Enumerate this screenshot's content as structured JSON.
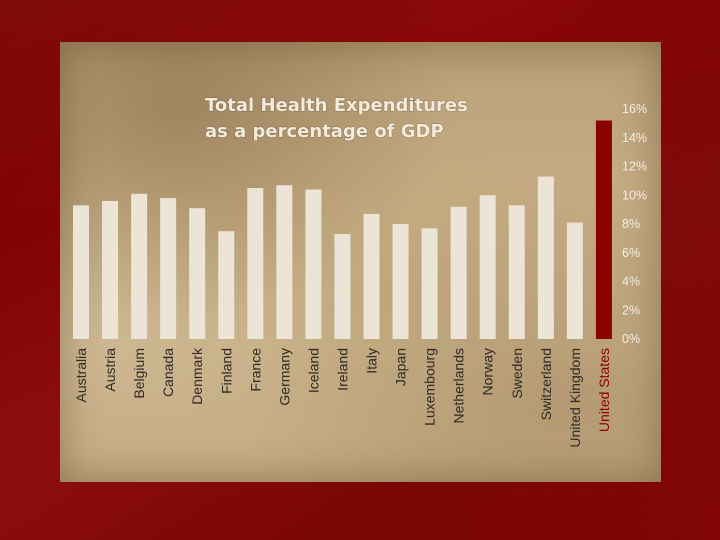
{
  "chart_data": {
    "type": "bar",
    "title_lines": [
      "Total Health Expenditures",
      "as a percentage of GDP"
    ],
    "categories": [
      "Australia",
      "Austria",
      "Belgium",
      "Canada",
      "Denmark",
      "Finland",
      "France",
      "Germany",
      "Iceland",
      "Ireland",
      "Italy",
      "Japan",
      "Luxembourg",
      "Netherlands",
      "Norway",
      "Sweden",
      "Switzerland",
      "United Kingdom",
      "United States"
    ],
    "values": [
      9.3,
      9.6,
      10.1,
      9.8,
      9.1,
      7.5,
      10.5,
      10.7,
      10.4,
      7.3,
      8.7,
      8.0,
      7.7,
      9.2,
      10.0,
      9.3,
      11.3,
      8.1,
      15.2
    ],
    "highlight_category": "United States",
    "colors": {
      "bar": "#ece4d6",
      "highlight": "#8b0000"
    },
    "ylim": [
      0,
      16
    ],
    "yticks": [
      0,
      2,
      4,
      6,
      8,
      10,
      12,
      14,
      16
    ],
    "ytick_suffix": "%",
    "y_axis_side": "right",
    "grid": false,
    "xlabel": "",
    "ylabel": ""
  }
}
